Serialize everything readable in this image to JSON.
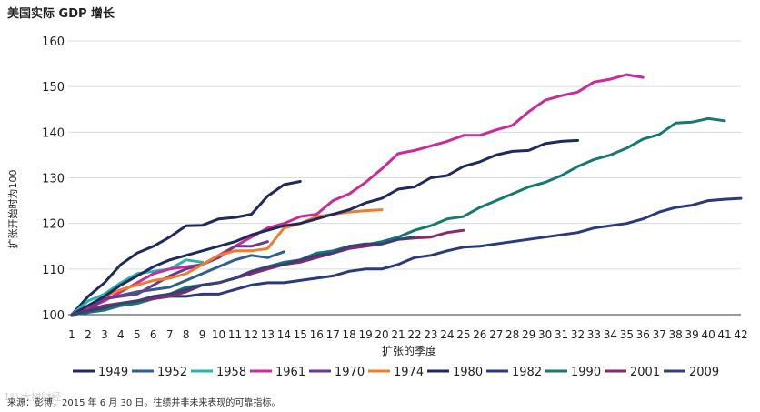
{
  "title": "美国实际 GDP 增长",
  "source": "来源：彭博，2015 年 6 月 30 日。往绩并非未来表现的可靠指标。",
  "watermark": "1⁹⁰ 大树财经",
  "chart_data": {
    "type": "line",
    "xlabel": "扩张的季度",
    "ylabel": "扩张开始时为100",
    "xlim": [
      1,
      42
    ],
    "ylim": [
      100,
      160
    ],
    "yticks": [
      100,
      110,
      120,
      130,
      140,
      150,
      160
    ],
    "xticks": [
      1,
      2,
      3,
      4,
      5,
      6,
      7,
      8,
      9,
      10,
      11,
      12,
      13,
      14,
      15,
      16,
      17,
      18,
      19,
      20,
      21,
      22,
      23,
      24,
      25,
      26,
      27,
      28,
      29,
      30,
      31,
      32,
      33,
      34,
      35,
      36,
      37,
      38,
      39,
      40,
      41,
      42
    ],
    "grid": "horizontal",
    "legend_position": "bottom",
    "series": [
      {
        "name": "1949",
        "color": "#1f2a5c",
        "values": [
          100,
          104.0,
          107.0,
          111.0,
          113.5,
          115.0,
          117.0,
          119.5,
          119.6,
          121.0,
          121.3,
          122.0,
          126.0,
          128.5,
          129.2
        ]
      },
      {
        "name": "1952",
        "color": "#2e5f8f",
        "values": [
          100,
          101.8,
          103.5,
          104.2,
          105.0,
          105.5,
          106.0,
          107.5,
          109.0,
          110.5,
          112.0,
          113.0,
          112.5,
          113.8
        ]
      },
      {
        "name": "1958",
        "color": "#25b5ad",
        "values": [
          100,
          103.0,
          104.5,
          107.0,
          109.0,
          109.5,
          110.0,
          112.0,
          111.5
        ]
      },
      {
        "name": "1961",
        "color": "#cc2b96",
        "values": [
          100,
          101.5,
          103.0,
          105.0,
          107.0,
          109.0,
          110.0,
          110.5,
          111.0,
          113.0,
          115.0,
          117.0,
          119.0,
          120.0,
          121.5,
          122.0,
          125.0,
          126.5,
          129.0,
          132.0,
          135.3,
          136.0,
          137.0,
          138.0,
          139.3,
          139.3,
          140.5,
          141.5,
          144.5,
          147.0,
          148.0,
          148.8,
          151.0,
          151.6,
          152.6,
          152.0
        ]
      },
      {
        "name": "1970",
        "color": "#6b3a8e",
        "values": [
          100,
          101.0,
          103.5,
          104.0,
          104.5,
          106.5,
          108.5,
          110.0,
          111.0,
          112.5,
          115.0,
          115.0,
          116.0
        ]
      },
      {
        "name": "1974",
        "color": "#ee7d2c",
        "values": [
          100,
          102.0,
          104.0,
          105.5,
          106.5,
          107.5,
          108.0,
          109.0,
          111.0,
          113.0,
          114.0,
          114.0,
          114.5,
          119.0,
          120.0,
          121.5,
          122.0,
          122.5,
          122.8,
          123.0
        ]
      },
      {
        "name": "1980",
        "color": "#1f2a5c",
        "values": [
          100,
          102.0,
          104.0,
          106.5,
          108.5,
          110.5,
          112.0,
          113.0,
          114.0,
          115.0,
          116.0,
          117.5,
          118.5,
          119.5,
          120.0,
          121.0,
          122.0,
          123.0,
          124.5,
          125.5,
          127.5,
          128.0,
          130.0,
          130.5,
          132.5,
          133.5,
          135.0,
          135.8,
          136.0,
          137.5,
          138.0,
          138.2
        ]
      },
      {
        "name": "1982",
        "color": "#2b3a7a",
        "values": [
          100,
          100.5,
          101.5,
          102.0,
          102.5,
          103.5,
          104.0,
          104.0,
          104.5,
          104.5,
          105.5,
          106.5,
          107.0,
          107.0,
          107.5,
          108.0,
          108.5,
          109.5,
          110.0,
          110.0,
          111.0,
          112.5,
          113.0,
          114.0,
          114.8,
          115.0,
          115.5,
          116.0,
          116.5,
          117.0,
          117.5,
          118.0,
          119.0,
          119.5,
          120.0,
          121.0,
          122.5,
          123.5,
          124.0,
          125.0,
          125.3,
          125.5
        ]
      },
      {
        "name": "1990",
        "color": "#147a6f",
        "values": [
          100,
          100.5,
          101.0,
          102.0,
          102.5,
          103.5,
          104.5,
          106.0,
          106.5,
          107.0,
          108.0,
          109.0,
          110.5,
          111.5,
          112.0,
          113.5,
          114.0,
          115.0,
          115.3,
          116.0,
          117.0,
          118.5,
          119.5,
          121.0,
          121.5,
          123.5,
          125.0,
          126.5,
          128.0,
          129.0,
          130.5,
          132.5,
          134.0,
          135.0,
          136.5,
          138.5,
          139.5,
          142.0,
          142.2,
          143.0,
          142.5
        ]
      },
      {
        "name": "2001",
        "color": "#8a2a6a",
        "values": [
          100,
          101.0,
          102.0,
          102.5,
          103.0,
          103.5,
          104.0,
          105.0,
          106.5,
          107.0,
          108.0,
          109.0,
          110.0,
          111.0,
          111.5,
          112.5,
          113.5,
          114.5,
          115.0,
          115.5,
          116.5,
          116.8,
          117.0,
          118.0,
          118.5
        ]
      },
      {
        "name": "2009",
        "color": "#3a3f7a",
        "values": [
          100,
          100.8,
          101.5,
          102.5,
          103.0,
          104.0,
          104.5,
          105.5,
          106.5,
          107.0,
          108.0,
          109.5,
          110.5,
          111.0,
          112.0,
          113.0,
          113.5,
          115.0,
          115.5,
          115.5,
          116.5,
          117.0
        ]
      }
    ]
  }
}
